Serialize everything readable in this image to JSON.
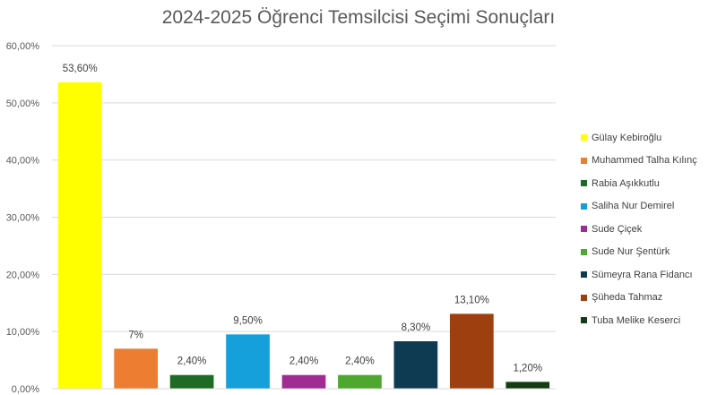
{
  "chart_data": {
    "type": "bar",
    "title": "2024-2025 Öğrenci Temsilcisi Seçimi Sonuçları",
    "xlabel": "",
    "ylabel": "",
    "ylim": [
      0,
      60
    ],
    "yticks": [
      {
        "value": 0,
        "label": "0,00%"
      },
      {
        "value": 10,
        "label": "10,00%"
      },
      {
        "value": 20,
        "label": "20,00%"
      },
      {
        "value": 30,
        "label": "30,00%"
      },
      {
        "value": 40,
        "label": "40,00%"
      },
      {
        "value": 50,
        "label": "50,00%"
      },
      {
        "value": 60,
        "label": "60,00%"
      }
    ],
    "grid": true,
    "legend_position": "right",
    "series": [
      {
        "name": "Gülay Kebiroğlu",
        "value": 53.6,
        "label": "53,60%",
        "color": "#FFFF00"
      },
      {
        "name": "Muhammed Talha Kılınç",
        "value": 7.0,
        "label": "7%",
        "color": "#ED7D31"
      },
      {
        "name": "Rabia Aşıkkutlu",
        "value": 2.4,
        "label": "2,40%",
        "color": "#1E6B26"
      },
      {
        "name": "Saliha Nur Demirel",
        "value": 9.5,
        "label": "9,50%",
        "color": "#15A0DB"
      },
      {
        "name": "Sude Çiçek",
        "value": 2.4,
        "label": "2,40%",
        "color": "#A02B93"
      },
      {
        "name": "Sude Nur Şentürk",
        "value": 2.4,
        "label": "2,40%",
        "color": "#4EA72E"
      },
      {
        "name": "Sümeyra Rana Fidancı",
        "value": 8.3,
        "label": "8,30%",
        "color": "#0E3A52"
      },
      {
        "name": "Şüheda Tahmaz",
        "value": 13.1,
        "label": "13,10%",
        "color": "#9E3F10"
      },
      {
        "name": "Tuba Melike Keserci",
        "value": 1.2,
        "label": "1,20%",
        "color": "#143D14"
      }
    ]
  }
}
